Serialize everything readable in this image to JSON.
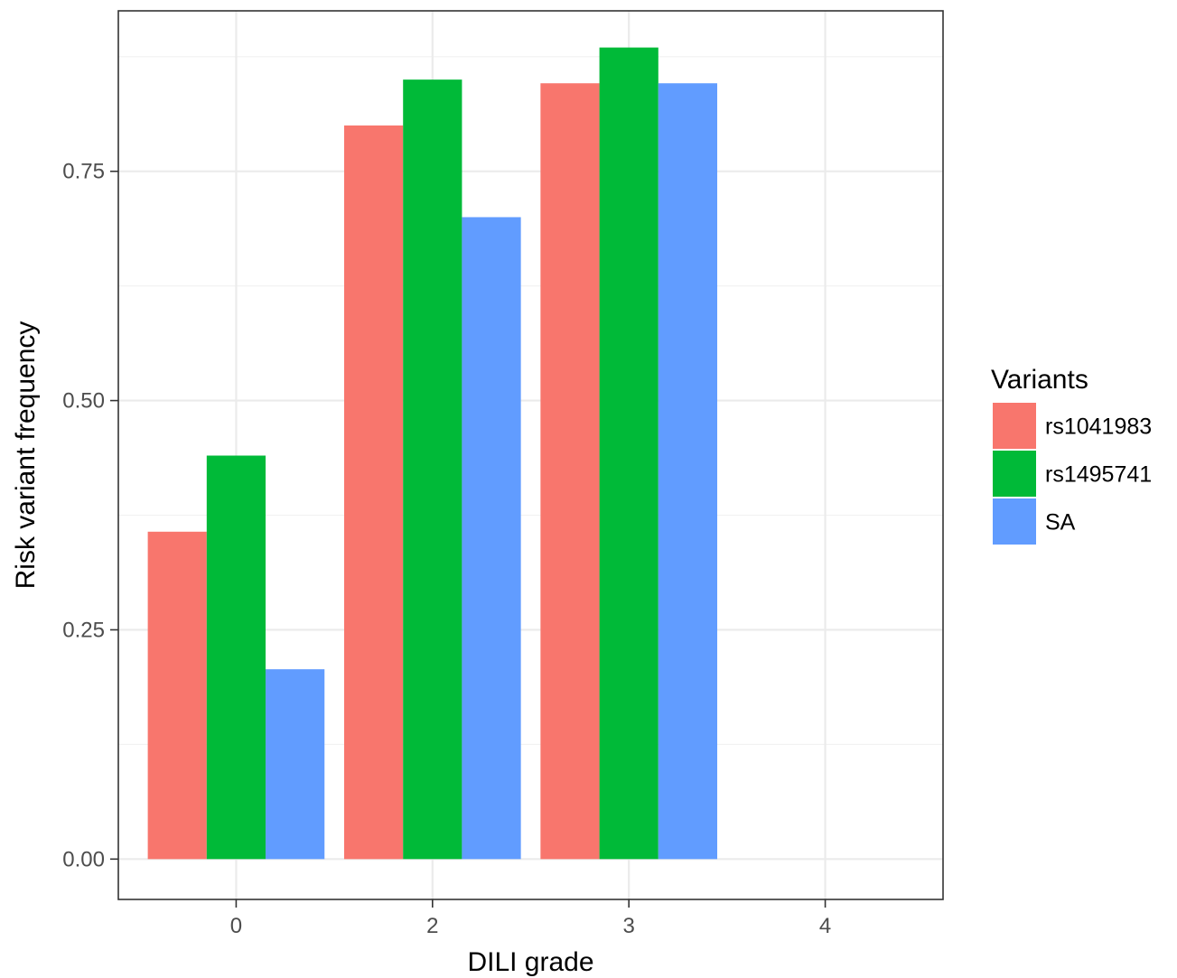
{
  "chart_data": {
    "type": "bar",
    "title": "",
    "xlabel": "DILI grade",
    "ylabel": "Risk variant frequency",
    "categories": [
      "0",
      "2",
      "3",
      "4"
    ],
    "series": [
      {
        "name": "rs1041983",
        "color": "#F8766D",
        "values": [
          0.357,
          0.8,
          0.846,
          null
        ]
      },
      {
        "name": "rs1495741",
        "color": "#00BA38",
        "values": [
          0.44,
          0.85,
          0.885,
          null
        ]
      },
      {
        "name": "SA",
        "color": "#619CFF",
        "values": [
          0.207,
          0.7,
          0.846,
          null
        ]
      }
    ],
    "ylim": [
      -0.044,
      0.925
    ],
    "yticks": [
      0.0,
      0.25,
      0.5,
      0.75
    ],
    "ytick_labels": [
      "0.00",
      "0.25",
      "0.50",
      "0.75"
    ],
    "grid": true,
    "legend": {
      "title": "Variants",
      "placement": "right"
    }
  }
}
